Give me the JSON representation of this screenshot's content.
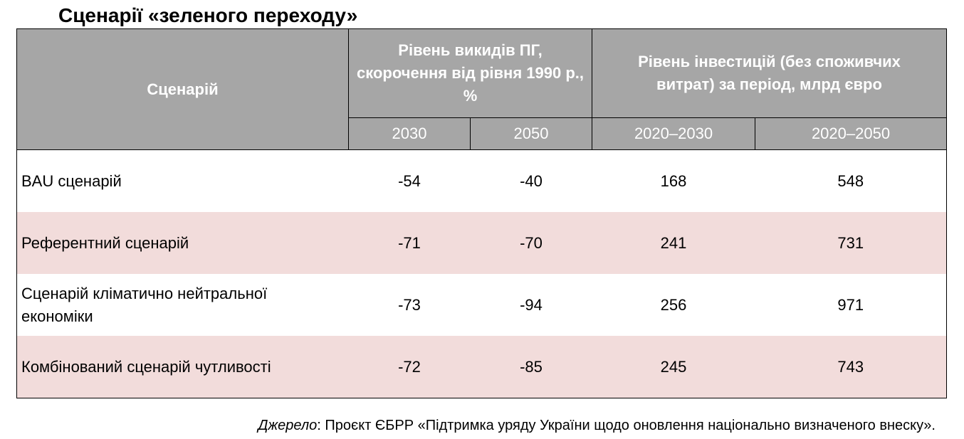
{
  "title": "Сценарії «зеленого переходу»",
  "table": {
    "header": {
      "scenario": "Сценарій",
      "emissions_group": "Рівень викидів ПГ, скорочення від рівня 1990 р., %",
      "investment_group": "Рівень інвестицій (без споживчих витрат) за період, млрд євро",
      "years": [
        "2030",
        "2050",
        "2020–2030",
        "2020–2050"
      ]
    },
    "rows": [
      {
        "name": "BAU сценарій",
        "values": [
          "-54",
          "-40",
          "168",
          "548"
        ]
      },
      {
        "name": "Референтний сценарій",
        "values": [
          "-71",
          "-70",
          "241",
          "731"
        ]
      },
      {
        "name": "Сценарій кліматично нейтральної економіки",
        "values": [
          "-73",
          "-94",
          "256",
          "971"
        ]
      },
      {
        "name": "Комбінований сценарій чутливості",
        "values": [
          "-72",
          "-85",
          "245",
          "743"
        ]
      }
    ]
  },
  "source": {
    "label": "Джерело",
    "text": ": Проєкт ЄБРР «Підтримка уряду України щодо оновлення національно визначеного внеску»."
  },
  "colors": {
    "header_bg": "#a6a6a6",
    "header_text": "#ffffff",
    "row_alt_bg": "#f2dcdb",
    "row_bg": "#ffffff"
  }
}
